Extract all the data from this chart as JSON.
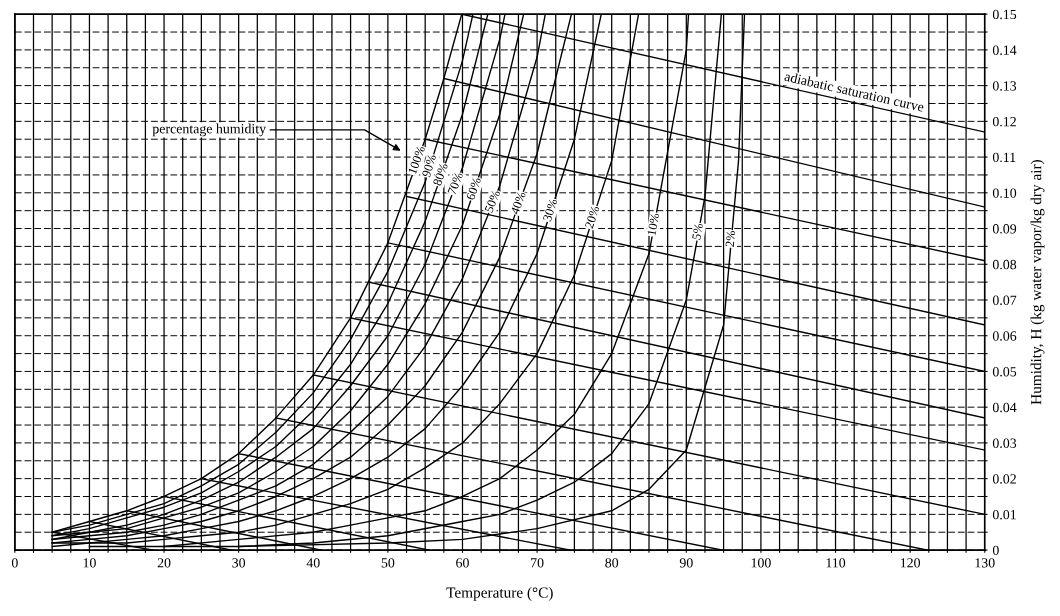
{
  "chart_data": {
    "type": "line",
    "xlabel": "Temperature (°C)",
    "ylabel": "Humidity, H (kg water vapor/kg dry air)",
    "xlim": [
      0,
      130
    ],
    "ylim": [
      0,
      0.15
    ],
    "grid": true,
    "line_style": "solid",
    "xticks": [
      0,
      {
        "value": 2.5,
        "label": null
      },
      {
        "value": 5,
        "label": null
      },
      {
        "value": 7.5,
        "label": null
      },
      10,
      {
        "value": 12.5,
        "label": null
      },
      {
        "value": 15,
        "label": null
      },
      {
        "value": 17.5,
        "label": null
      },
      20,
      {
        "value": 22.5,
        "label": null
      },
      {
        "value": 25,
        "label": null
      },
      {
        "value": 27.5,
        "label": null
      },
      30,
      {
        "value": 32.5,
        "label": null
      },
      {
        "value": 35,
        "label": null
      },
      {
        "value": 37.5,
        "label": null
      },
      40,
      {
        "value": 42.5,
        "label": null
      },
      {
        "value": 45,
        "label": null
      },
      {
        "value": 47.5,
        "label": null
      },
      50,
      {
        "value": 52.5,
        "label": null
      },
      {
        "value": 55,
        "label": null
      },
      {
        "value": 57.5,
        "label": null
      },
      60,
      {
        "value": 62.5,
        "label": null
      },
      {
        "value": 65,
        "label": null
      },
      {
        "value": 67.5,
        "label": null
      },
      70,
      {
        "value": 72.5,
        "label": null
      },
      {
        "value": 75,
        "label": null
      },
      {
        "value": 77.5,
        "label": null
      },
      80,
      {
        "value": 82.5,
        "label": null
      },
      {
        "value": 85,
        "label": null
      },
      {
        "value": 87.5,
        "label": null
      },
      90,
      {
        "value": 92.5,
        "label": null
      },
      {
        "value": 95,
        "label": null
      },
      {
        "value": 97.5,
        "label": null
      },
      100,
      {
        "value": 102.5,
        "label": null
      },
      {
        "value": 105,
        "label": null
      },
      {
        "value": 107.5,
        "label": null
      },
      110,
      {
        "value": 112.5,
        "label": null
      },
      {
        "value": 115,
        "label": null
      },
      {
        "value": 117.5,
        "label": null
      },
      120,
      {
        "value": 122.5,
        "label": null
      },
      {
        "value": 125,
        "label": null
      },
      {
        "value": 127.5,
        "label": null
      },
      130
    ],
    "yticks": [
      0,
      {
        "value": 0.005,
        "label": null
      },
      0.01,
      {
        "value": 0.015,
        "label": null
      },
      0.02,
      {
        "value": 0.025,
        "label": null
      },
      0.03,
      {
        "value": 0.035,
        "label": null
      },
      0.04,
      {
        "value": 0.045,
        "label": null
      },
      0.05,
      {
        "value": 0.055,
        "label": null
      },
      0.06,
      {
        "value": 0.065,
        "label": null
      },
      0.07,
      {
        "value": 0.075,
        "label": null
      },
      0.08,
      {
        "value": 0.085,
        "label": null
      },
      0.09,
      {
        "value": 0.095,
        "label": null
      },
      {
        "value": 0.1,
        "label": "0.10"
      },
      {
        "value": 0.105,
        "label": null
      },
      0.11,
      {
        "value": 0.115,
        "label": null
      },
      0.12,
      {
        "value": 0.125,
        "label": null
      },
      0.13,
      {
        "value": 0.135,
        "label": null
      },
      0.14,
      {
        "value": 0.145,
        "label": null
      },
      0.15
    ],
    "annotations": [
      "percentage humidity"
    ],
    "series": [
      {
        "name": "100%",
        "color": "#000000",
        "x": [
          5,
          10,
          15,
          20,
          25,
          30,
          35,
          40,
          45,
          50,
          55,
          57.5,
          59.9
        ],
        "values": [
          0.005,
          0.008,
          0.011,
          0.015,
          0.02,
          0.027,
          0.037,
          0.049,
          0.065,
          0.086,
          0.115,
          0.132,
          0.15
        ]
      },
      {
        "name": "90%",
        "color": "#000000",
        "x": [
          5,
          10,
          15,
          20,
          25,
          30,
          35,
          40,
          45,
          50,
          55,
          60,
          61.4
        ],
        "values": [
          0.005,
          0.007,
          0.01,
          0.013,
          0.018,
          0.024,
          0.033,
          0.044,
          0.059,
          0.078,
          0.103,
          0.137,
          0.15
        ]
      },
      {
        "name": "80%",
        "color": "#000000",
        "x": [
          5,
          10,
          15,
          20,
          25,
          30,
          35,
          40,
          45,
          50,
          55,
          60,
          63.4
        ],
        "values": [
          0.004,
          0.006,
          0.009,
          0.012,
          0.016,
          0.022,
          0.029,
          0.039,
          0.052,
          0.069,
          0.092,
          0.122,
          0.15
        ]
      },
      {
        "name": "70%",
        "color": "#000000",
        "x": [
          5,
          10,
          15,
          20,
          25,
          30,
          35,
          40,
          45,
          50,
          55,
          60,
          65,
          65.7
        ],
        "values": [
          0.004,
          0.005,
          0.007,
          0.01,
          0.014,
          0.019,
          0.026,
          0.034,
          0.046,
          0.06,
          0.08,
          0.107,
          0.143,
          0.15
        ]
      },
      {
        "name": "60%",
        "color": "#000000",
        "x": [
          5,
          10,
          15,
          20,
          25,
          30,
          35,
          40,
          45,
          50,
          55,
          60,
          65,
          68.2
        ],
        "values": [
          0.003,
          0.005,
          0.006,
          0.009,
          0.012,
          0.016,
          0.022,
          0.029,
          0.039,
          0.052,
          0.069,
          0.091,
          0.122,
          0.15
        ]
      },
      {
        "name": "50%",
        "color": "#000000",
        "x": [
          5,
          10,
          15,
          20,
          25,
          30,
          35,
          40,
          45,
          50,
          55,
          60,
          65,
          70,
          71.1
        ],
        "values": [
          0.003,
          0.004,
          0.005,
          0.007,
          0.01,
          0.014,
          0.018,
          0.024,
          0.033,
          0.043,
          0.057,
          0.076,
          0.102,
          0.138,
          0.15
        ]
      },
      {
        "name": "40%",
        "color": "#000000",
        "x": [
          5,
          10,
          15,
          20,
          25,
          30,
          35,
          40,
          45,
          50,
          55,
          60,
          65,
          70,
          74.6
        ],
        "values": [
          0.002,
          0.003,
          0.004,
          0.006,
          0.008,
          0.011,
          0.015,
          0.02,
          0.026,
          0.035,
          0.046,
          0.061,
          0.082,
          0.111,
          0.15
        ]
      },
      {
        "name": "30%",
        "color": "#000000",
        "x": [
          5,
          10,
          15,
          20,
          25,
          30,
          35,
          40,
          45,
          50,
          55,
          60,
          65,
          70,
          75,
          78.6
        ],
        "values": [
          0.002,
          0.002,
          0.003,
          0.004,
          0.006,
          0.008,
          0.011,
          0.015,
          0.02,
          0.026,
          0.034,
          0.046,
          0.061,
          0.083,
          0.115,
          0.15
        ]
      },
      {
        "name": "20%",
        "color": "#000000",
        "x": [
          5,
          10,
          15,
          20,
          25,
          30,
          35,
          40,
          45,
          50,
          55,
          60,
          65,
          70,
          75,
          80,
          83.6
        ],
        "values": [
          0.001,
          0.002,
          0.002,
          0.003,
          0.004,
          0.005,
          0.007,
          0.01,
          0.013,
          0.017,
          0.023,
          0.03,
          0.041,
          0.055,
          0.077,
          0.109,
          0.15
        ]
      },
      {
        "name": "10%",
        "color": "#000000",
        "x": [
          10,
          20,
          30,
          40,
          45,
          50,
          55,
          60,
          65,
          70,
          75,
          80,
          85,
          90,
          90.3
        ],
        "values": [
          0.001,
          0.001,
          0.003,
          0.005,
          0.007,
          0.009,
          0.011,
          0.015,
          0.02,
          0.028,
          0.038,
          0.055,
          0.083,
          0.14,
          0.15
        ]
      },
      {
        "name": "5%",
        "color": "#000000",
        "x": [
          20,
          30,
          40,
          50,
          60,
          65,
          70,
          75,
          80,
          85,
          90,
          92.5,
          94.7
        ],
        "values": [
          0.001,
          0.001,
          0.002,
          0.004,
          0.008,
          0.01,
          0.014,
          0.019,
          0.027,
          0.041,
          0.07,
          0.099,
          0.15
        ]
      },
      {
        "name": "2%",
        "color": "#000000",
        "x": [
          30,
          50,
          60,
          70,
          80,
          85,
          90,
          95,
          97,
          97.8
        ],
        "values": [
          0.001,
          0.002,
          0.003,
          0.006,
          0.011,
          0.017,
          0.028,
          0.063,
          0.109,
          0.15
        ]
      },
      {
        "name": "adiabatic saturation curve",
        "color": "#000000",
        "x": [
          59.9,
          130
        ],
        "values": [
          0.15,
          0.117
        ]
      },
      {
        "color": "#000000",
        "x": [
          57.5,
          130
        ],
        "values": [
          0.132,
          0.096
        ]
      },
      {
        "color": "#000000",
        "x": [
          55,
          130
        ],
        "values": [
          0.115,
          0.081
        ]
      },
      {
        "color": "#000000",
        "x": [
          52.5,
          130
        ],
        "values": [
          0.099,
          0.063
        ]
      },
      {
        "color": "#000000",
        "x": [
          50,
          130
        ],
        "values": [
          0.086,
          0.05
        ]
      },
      {
        "color": "#000000",
        "x": [
          47.5,
          130
        ],
        "values": [
          0.075,
          0.037
        ]
      },
      {
        "color": "#000000",
        "x": [
          45,
          130
        ],
        "values": [
          0.065,
          0.028
        ]
      },
      {
        "color": "#000000",
        "x": [
          40,
          130
        ],
        "values": [
          0.049,
          0.01
        ]
      },
      {
        "color": "#000000",
        "x": [
          35,
          122.3
        ],
        "values": [
          0.037,
          0
        ]
      },
      {
        "color": "#000000",
        "x": [
          30,
          94.8
        ],
        "values": [
          0.027,
          0
        ]
      },
      {
        "color": "#000000",
        "x": [
          25,
          74.4
        ],
        "values": [
          0.02,
          0
        ]
      },
      {
        "color": "#000000",
        "x": [
          20,
          55.5
        ],
        "values": [
          0.015,
          0
        ]
      },
      {
        "color": "#000000",
        "x": [
          15,
          41
        ],
        "values": [
          0.011,
          0
        ]
      },
      {
        "color": "#000000",
        "x": [
          10,
          29
        ],
        "values": [
          0.008,
          0
        ]
      },
      {
        "color": "#000000",
        "x": [
          5,
          18.5
        ],
        "values": [
          0.005,
          0
        ]
      }
    ]
  }
}
